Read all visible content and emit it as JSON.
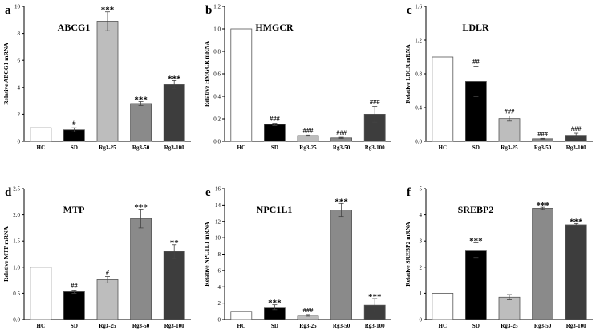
{
  "figure": {
    "panels": [
      "a",
      "b",
      "c",
      "d",
      "e",
      "f"
    ]
  },
  "chart_data": [
    {
      "letter": "a",
      "type": "bar",
      "title": "ABCG1",
      "ylabel": "Relative ABCG1 mRNA",
      "categories": [
        "HC",
        "SD",
        "Rg3-25",
        "Rg3-50",
        "Rg3-100"
      ],
      "values": [
        1.0,
        0.85,
        8.9,
        2.8,
        4.2
      ],
      "errors": [
        0,
        0.15,
        0.7,
        0.15,
        0.3
      ],
      "significance": [
        "",
        "#",
        "***",
        "***",
        "***"
      ],
      "ylim": [
        0,
        10
      ],
      "ticks": [
        0,
        2,
        4,
        6,
        8,
        10
      ],
      "tick_labels": [
        "0",
        "2",
        "4",
        "6",
        "8",
        "10"
      ],
      "colors": [
        "#ffffff",
        "#000000",
        "#bdbdbd",
        "#8a8a8a",
        "#3d3d3d"
      ]
    },
    {
      "letter": "b",
      "type": "bar",
      "title": "HMGCR",
      "ylabel": "Relative HMGCR mRNA",
      "categories": [
        "HC",
        "SD",
        "Rg3-25",
        "Rg3-50",
        "Rg3-100"
      ],
      "values": [
        1.0,
        0.15,
        0.05,
        0.03,
        0.24
      ],
      "errors": [
        0,
        0.01,
        0.005,
        0.005,
        0.07
      ],
      "significance": [
        "",
        "###",
        "###",
        "###",
        "###"
      ],
      "ylim": [
        0,
        1.2
      ],
      "ticks": [
        0,
        0.2,
        0.4,
        0.6,
        0.8,
        1.0,
        1.2
      ],
      "tick_labels": [
        "0.0",
        "0.2",
        "0.4",
        "0.6",
        "0.8",
        "1.0",
        "1.2"
      ],
      "colors": [
        "#ffffff",
        "#000000",
        "#bdbdbd",
        "#8a8a8a",
        "#3d3d3d"
      ]
    },
    {
      "letter": "c",
      "type": "bar",
      "title": "LDLR",
      "ylabel": "Relative LDLR mRNA",
      "categories": [
        "HC",
        "SD",
        "Rg3-25",
        "Rg3-50",
        "Rg3-100"
      ],
      "values": [
        1.0,
        0.71,
        0.27,
        0.03,
        0.07
      ],
      "errors": [
        0,
        0.18,
        0.03,
        0.005,
        0.025
      ],
      "significance": [
        "",
        "##",
        "###",
        "###",
        "###"
      ],
      "ylim": [
        0,
        1.6
      ],
      "ticks": [
        0,
        0.4,
        0.8,
        1.2,
        1.6
      ],
      "tick_labels": [
        "0.0",
        "0.4",
        "0.8",
        "1.2",
        "1.6"
      ],
      "colors": [
        "#ffffff",
        "#000000",
        "#bdbdbd",
        "#8a8a8a",
        "#3d3d3d"
      ]
    },
    {
      "letter": "d",
      "type": "bar",
      "title": "MTP",
      "ylabel": "Relative MTP mRNA",
      "categories": [
        "HC",
        "SD",
        "Rg3-25",
        "Rg3-50",
        "Rg3-100"
      ],
      "values": [
        1.0,
        0.53,
        0.76,
        1.93,
        1.3
      ],
      "errors": [
        0,
        0.03,
        0.06,
        0.18,
        0.13
      ],
      "significance": [
        "",
        "##",
        "#",
        "***",
        "**"
      ],
      "ylim": [
        0,
        2.5
      ],
      "ticks": [
        0,
        0.5,
        1.0,
        1.5,
        2.0,
        2.5
      ],
      "tick_labels": [
        "0.0",
        "0.5",
        "1.0",
        "1.5",
        "2.0",
        "2.5"
      ],
      "colors": [
        "#ffffff",
        "#000000",
        "#bdbdbd",
        "#8a8a8a",
        "#3d3d3d"
      ]
    },
    {
      "letter": "e",
      "type": "bar",
      "title": "NPC1L1",
      "ylabel": "Relative NPC1L1 mRNA",
      "categories": [
        "HC",
        "SD",
        "Rg3-25",
        "Rg3-50",
        "Rg3-100"
      ],
      "values": [
        1.0,
        1.5,
        0.5,
        13.4,
        1.75
      ],
      "errors": [
        0,
        0.3,
        0.1,
        0.8,
        0.8
      ],
      "significance": [
        "",
        "***",
        "###",
        "***",
        "***"
      ],
      "ylim": [
        0,
        16
      ],
      "ticks": [
        0,
        2,
        4,
        6,
        8,
        10,
        12,
        14,
        16
      ],
      "tick_labels": [
        "0",
        "2",
        "4",
        "6",
        "8",
        "10",
        "12",
        "14",
        "16"
      ],
      "colors": [
        "#ffffff",
        "#000000",
        "#bdbdbd",
        "#8a8a8a",
        "#3d3d3d"
      ]
    },
    {
      "letter": "f",
      "type": "bar",
      "title": "SREBP2",
      "ylabel": "Relative SREBP2 mRNA",
      "categories": [
        "HC",
        "SD",
        "Rg3-25",
        "Rg3-50",
        "Rg3-100"
      ],
      "values": [
        1.0,
        2.65,
        0.85,
        4.25,
        3.62
      ],
      "errors": [
        0,
        0.28,
        0.1,
        0.04,
        0.05
      ],
      "significance": [
        "",
        "***",
        "",
        "***",
        "***"
      ],
      "ylim": [
        0,
        5
      ],
      "ticks": [
        0,
        1,
        2,
        3,
        4,
        5
      ],
      "tick_labels": [
        "0",
        "1",
        "2",
        "3",
        "4",
        "5"
      ],
      "colors": [
        "#ffffff",
        "#000000",
        "#bdbdbd",
        "#8a8a8a",
        "#3d3d3d"
      ]
    }
  ]
}
